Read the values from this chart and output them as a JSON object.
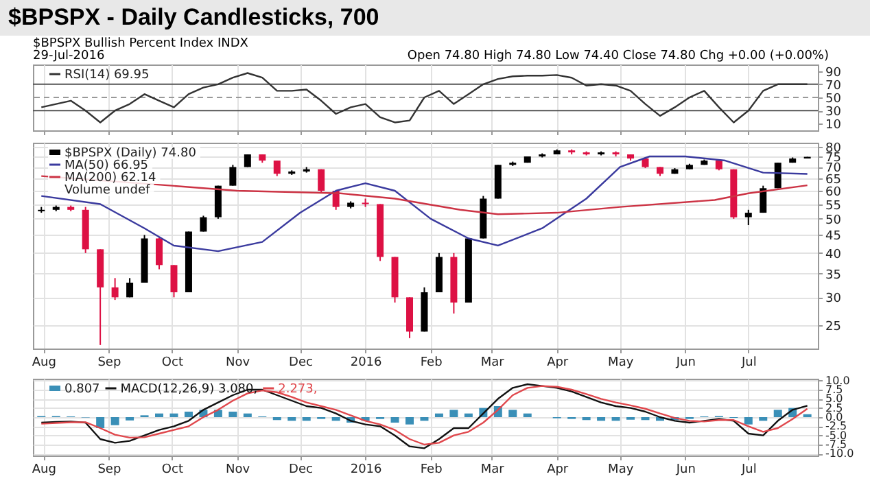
{
  "chart_data": [
    {
      "type": "line",
      "title": "$BPSPX - Daily Candlesticks, 700",
      "subtitle": "$BPSPX Bullish Percent Index INDX",
      "annotations": [
        "29-Jul-2016",
        "Open 74.80 High 74.80 Low 74.40 Close 74.80 Chg +0.00 (+0.00%)"
      ],
      "x": [
        "2015-07-31",
        "2015-08-07",
        "2015-08-14",
        "2015-08-21",
        "2015-08-28",
        "2015-09-04",
        "2015-09-11",
        "2015-09-18",
        "2015-09-25",
        "2015-10-02",
        "2015-10-09",
        "2015-10-16",
        "2015-10-23",
        "2015-10-30",
        "2015-11-06",
        "2015-11-13",
        "2015-11-20",
        "2015-11-27",
        "2015-12-04",
        "2015-12-11",
        "2015-12-18",
        "2015-12-25",
        "2016-01-01",
        "2016-01-08",
        "2016-01-15",
        "2016-01-22",
        "2016-01-29",
        "2016-02-05",
        "2016-02-12",
        "2016-02-19",
        "2016-02-26",
        "2016-03-04",
        "2016-03-11",
        "2016-03-18",
        "2016-03-25",
        "2016-04-01",
        "2016-04-08",
        "2016-04-15",
        "2016-04-22",
        "2016-04-29",
        "2016-05-06",
        "2016-05-13",
        "2016-05-20",
        "2016-05-27",
        "2016-06-03",
        "2016-06-10",
        "2016-06-17",
        "2016-06-24",
        "2016-07-01",
        "2016-07-08",
        "2016-07-15",
        "2016-07-22",
        "2016-07-29"
      ],
      "series": [
        {
          "name": "RSI(14) 69.95",
          "color": "#333333",
          "values": [
            35,
            40,
            45,
            30,
            12,
            30,
            40,
            55,
            45,
            35,
            55,
            65,
            70,
            80,
            87,
            80,
            60,
            60,
            62,
            45,
            25,
            35,
            40,
            20,
            12,
            15,
            50,
            60,
            40,
            55,
            70,
            78,
            82,
            83,
            83,
            84,
            80,
            68,
            70,
            68,
            60,
            40,
            22,
            35,
            50,
            60,
            35,
            12,
            30,
            60,
            70,
            70,
            70
          ]
        }
      ],
      "xlim": [
        "2015-07-27",
        "2016-08-03"
      ],
      "xticks": [
        {
          "value": "2015-08-01",
          "label": null
        },
        {
          "value": "2015-09-01",
          "label": null
        },
        {
          "value": "2015-10-01",
          "label": null
        },
        {
          "value": "2015-11-01",
          "label": null
        },
        {
          "value": "2015-12-01",
          "label": null
        },
        {
          "value": "2016-01-01",
          "label": null
        },
        {
          "value": "2016-02-01",
          "label": null
        },
        {
          "value": "2016-03-01",
          "label": null
        },
        {
          "value": "2016-04-01",
          "label": null
        },
        {
          "value": "2016-05-01",
          "label": null
        },
        {
          "value": "2016-06-01",
          "label": null
        },
        {
          "value": "2016-07-01",
          "label": null
        }
      ],
      "ylim": [
        0,
        100
      ],
      "yticks": [
        10,
        30,
        50,
        70,
        90
      ],
      "ref_lines": [
        {
          "axis": "y",
          "value": 70,
          "color": "#555555"
        },
        {
          "axis": "y",
          "value": 50,
          "color": "#999999",
          "line_style": "dashed"
        },
        {
          "axis": "y",
          "value": 30,
          "color": "#555555"
        }
      ],
      "grid": "x",
      "legend": "top left",
      "tick_labels": "y"
    },
    {
      "type": "candlestick",
      "annotations": [
        "Volume undef"
      ],
      "series": [
        {
          "type": "candlestick",
          "name": "$BPSPX (Daily) 74.80",
          "color": "#000000",
          "x": [
            "2015-07-31",
            "2015-08-07",
            "2015-08-14",
            "2015-08-21",
            "2015-08-28",
            "2015-09-04",
            "2015-09-11",
            "2015-09-18",
            "2015-09-25",
            "2015-10-02",
            "2015-10-09",
            "2015-10-16",
            "2015-10-23",
            "2015-10-30",
            "2015-11-06",
            "2015-11-13",
            "2015-11-20",
            "2015-11-27",
            "2015-12-04",
            "2015-12-11",
            "2015-12-18",
            "2015-12-25",
            "2016-01-01",
            "2016-01-08",
            "2016-01-15",
            "2016-01-22",
            "2016-01-29",
            "2016-02-05",
            "2016-02-12",
            "2016-02-19",
            "2016-02-26",
            "2016-03-04",
            "2016-03-11",
            "2016-03-18",
            "2016-03-25",
            "2016-04-01",
            "2016-04-08",
            "2016-04-15",
            "2016-04-22",
            "2016-04-29",
            "2016-05-06",
            "2016-05-13",
            "2016-05-20",
            "2016-05-27",
            "2016-06-03",
            "2016-06-10",
            "2016-06-17",
            "2016-06-24",
            "2016-07-01",
            "2016-07-08",
            "2016-07-15",
            "2016-07-22",
            "2016-07-29"
          ],
          "ohlc": [
            [
              52.5,
              54,
              52,
              53
            ],
            [
              53,
              54.5,
              52.5,
              54
            ],
            [
              54,
              54.5,
              52.5,
              53
            ],
            [
              53,
              54,
              40,
              41
            ],
            [
              41,
              41,
              22,
              32
            ],
            [
              32,
              34,
              29.5,
              30
            ],
            [
              30,
              34,
              30,
              33
            ],
            [
              33,
              45,
              33,
              44
            ],
            [
              44,
              44.5,
              36,
              37
            ],
            [
              37,
              37,
              30,
              31
            ],
            [
              31,
              46,
              31,
              46
            ],
            [
              46,
              51,
              46,
              50.5
            ],
            [
              50.5,
              62,
              50,
              62
            ],
            [
              62,
              71,
              62,
              70
            ],
            [
              70,
              76,
              70,
              76
            ],
            [
              76,
              76,
              72,
              73
            ],
            [
              73,
              73,
              66,
              67
            ],
            [
              67,
              68.5,
              66.5,
              68
            ],
            [
              68,
              70,
              67.5,
              69
            ],
            [
              69,
              69,
              59,
              60
            ],
            [
              60,
              60,
              53,
              54
            ],
            [
              54,
              56,
              53.5,
              55.5
            ],
            [
              55.5,
              57,
              54,
              55
            ],
            [
              55,
              55,
              38,
              39
            ],
            [
              39,
              39,
              29,
              30
            ],
            [
              30,
              30,
              23,
              24
            ],
            [
              24,
              32,
              24,
              31
            ],
            [
              31,
              40,
              31,
              39
            ],
            [
              39,
              40,
              27,
              29
            ],
            [
              29,
              44,
              29,
              44
            ],
            [
              44,
              58,
              44,
              57
            ],
            [
              57,
              71,
              57,
              71
            ],
            [
              71,
              72.5,
              70.5,
              72
            ],
            [
              72,
              75,
              72,
              75
            ],
            [
              75,
              76.5,
              74.5,
              76
            ],
            [
              76,
              78.5,
              76,
              78
            ],
            [
              78,
              78.5,
              76,
              77
            ],
            [
              77,
              77.5,
              75.5,
              76
            ],
            [
              76,
              77.5,
              75.5,
              77
            ],
            [
              77,
              77.5,
              75,
              76
            ],
            [
              76,
              76,
              73,
              74
            ],
            [
              74,
              74,
              69.5,
              70
            ],
            [
              70,
              70,
              66,
              67
            ],
            [
              67,
              69.5,
              67,
              69
            ],
            [
              69,
              71.5,
              69,
              71
            ],
            [
              71,
              73.5,
              71,
              73
            ],
            [
              73,
              73,
              68.5,
              69
            ],
            [
              69,
              69,
              50,
              50.5
            ],
            [
              50.5,
              53,
              48,
              52
            ],
            [
              52,
              62,
              52,
              61
            ],
            [
              61,
              72,
              61,
              72
            ],
            [
              72,
              74.5,
              72,
              74
            ],
            [
              74,
              74.8,
              74,
              74.8
            ]
          ],
          "colors": [
            "#000000",
            "#000000",
            "#dd1144",
            "#dd1144",
            "#dd1144",
            "#dd1144",
            "#000000",
            "#000000",
            "#dd1144",
            "#dd1144",
            "#000000",
            "#000000",
            "#000000",
            "#000000",
            "#000000",
            "#dd1144",
            "#dd1144",
            "#000000",
            "#000000",
            "#dd1144",
            "#dd1144",
            "#000000",
            "#dd1144",
            "#dd1144",
            "#dd1144",
            "#dd1144",
            "#000000",
            "#000000",
            "#dd1144",
            "#000000",
            "#000000",
            "#000000",
            "#000000",
            "#000000",
            "#000000",
            "#000000",
            "#dd1144",
            "#dd1144",
            "#000000",
            "#dd1144",
            "#dd1144",
            "#dd1144",
            "#dd1144",
            "#000000",
            "#000000",
            "#000000",
            "#dd1144",
            "#dd1144",
            "#000000",
            "#000000",
            "#000000",
            "#000000",
            "#000000"
          ]
        },
        {
          "type": "line",
          "name": "MA(50) 66.95",
          "color": "#3a3a9e",
          "x": [
            "2015-07-31",
            "2015-08-28",
            "2015-09-18",
            "2015-10-02",
            "2015-10-23",
            "2015-11-13",
            "2015-12-01",
            "2015-12-18",
            "2016-01-01",
            "2016-01-15",
            "2016-02-01",
            "2016-02-19",
            "2016-03-04",
            "2016-03-25",
            "2016-04-15",
            "2016-05-01",
            "2016-05-15",
            "2016-06-01",
            "2016-06-20",
            "2016-07-08",
            "2016-07-29"
          ],
          "values": [
            58,
            55,
            47,
            42,
            40.5,
            43,
            52,
            60,
            63,
            60,
            50,
            44,
            42,
            47,
            57,
            70,
            75,
            75,
            73,
            67.5,
            66.95
          ]
        },
        {
          "type": "line",
          "name": "MA(200) 62.14",
          "color": "#cc3344",
          "x": [
            "2015-07-31",
            "2015-10-01",
            "2015-11-01",
            "2015-12-20",
            "2016-01-15",
            "2016-02-15",
            "2016-03-04",
            "2016-04-01",
            "2016-05-01",
            "2016-06-15",
            "2016-07-01",
            "2016-07-29"
          ],
          "values": [
            66,
            62,
            60,
            59,
            57,
            53,
            51.5,
            52,
            54,
            56.5,
            59,
            62.14
          ]
        }
      ],
      "xlim": [
        "2015-07-27",
        "2016-08-03"
      ],
      "xticks": [
        {
          "value": "2015-08-01",
          "label": "Aug"
        },
        {
          "value": "2015-09-01",
          "label": "Sep"
        },
        {
          "value": "2015-10-01",
          "label": "Oct"
        },
        {
          "value": "2015-11-01",
          "label": "Nov"
        },
        {
          "value": "2015-12-01",
          "label": "Dec"
        },
        {
          "value": "2016-01-01",
          "label": "2016"
        },
        {
          "value": "2016-02-01",
          "label": "Feb"
        },
        {
          "value": "2016-03-01",
          "label": "Mar"
        },
        {
          "value": "2016-04-01",
          "label": "Apr"
        },
        {
          "value": "2016-05-01",
          "label": "May"
        },
        {
          "value": "2016-06-01",
          "label": "Jun"
        },
        {
          "value": "2016-07-01",
          "label": "Jul"
        }
      ],
      "ylim": [
        21.5,
        82
      ],
      "yticks": [
        25,
        30,
        35,
        40,
        45,
        50,
        55,
        60,
        65,
        70,
        75,
        80
      ],
      "log": "y",
      "grid": true,
      "legend": "top left"
    },
    {
      "type": "line",
      "x": [
        "2015-07-31",
        "2015-08-07",
        "2015-08-14",
        "2015-08-21",
        "2015-08-28",
        "2015-09-04",
        "2015-09-11",
        "2015-09-18",
        "2015-09-25",
        "2015-10-02",
        "2015-10-09",
        "2015-10-16",
        "2015-10-23",
        "2015-10-30",
        "2015-11-06",
        "2015-11-13",
        "2015-11-20",
        "2015-11-27",
        "2015-12-04",
        "2015-12-11",
        "2015-12-18",
        "2015-12-25",
        "2016-01-01",
        "2016-01-08",
        "2016-01-15",
        "2016-01-22",
        "2016-01-29",
        "2016-02-05",
        "2016-02-12",
        "2016-02-19",
        "2016-02-26",
        "2016-03-04",
        "2016-03-11",
        "2016-03-18",
        "2016-03-25",
        "2016-04-01",
        "2016-04-08",
        "2016-04-15",
        "2016-04-22",
        "2016-04-29",
        "2016-05-06",
        "2016-05-13",
        "2016-05-20",
        "2016-05-27",
        "2016-06-03",
        "2016-06-10",
        "2016-06-17",
        "2016-06-24",
        "2016-07-01",
        "2016-07-08",
        "2016-07-15",
        "2016-07-22",
        "2016-07-29"
      ],
      "series": [
        {
          "type": "bar",
          "name": "0.807",
          "color": "#3a8fb7",
          "values": [
            0.3,
            0.3,
            0.2,
            -0.1,
            -3,
            -2.2,
            -0.9,
            0.5,
            1,
            1,
            1.5,
            2,
            2,
            1.5,
            1,
            0.2,
            -0.8,
            -1,
            -1,
            -0.5,
            -1,
            -1.5,
            -1,
            -0.5,
            -1.5,
            -2,
            -1,
            1,
            2,
            1,
            2.5,
            3,
            2,
            1,
            0,
            -0.3,
            -0.5,
            -0.8,
            -1,
            -1,
            -0.7,
            -0.8,
            -1,
            -0.8,
            -0.5,
            0.2,
            0.3,
            -0.2,
            -2,
            -1,
            2,
            2.5,
            0.8
          ]
        },
        {
          "type": "line",
          "name": "MACD(12,26,9) 3.080,",
          "color": "#111111",
          "values": [
            -1.5,
            -1.3,
            -1.2,
            -1.5,
            -6,
            -7,
            -6.5,
            -5,
            -3.5,
            -2.5,
            -1,
            2,
            4,
            6,
            7.5,
            7.5,
            6,
            4.5,
            3,
            2.5,
            1,
            -1,
            -2,
            -2.5,
            -5,
            -8,
            -8.5,
            -6,
            -3,
            -3,
            1,
            5,
            8,
            9,
            8.5,
            8,
            7,
            5.5,
            4,
            3,
            2.5,
            1.5,
            0,
            -1,
            -1.5,
            -1,
            -0.5,
            -1,
            -4.5,
            -5,
            -1,
            2,
            3.1
          ]
        },
        {
          "type": "line",
          "name": "2.273,",
          "color": "#e0474c",
          "values": [
            -1.8,
            -1.6,
            -1.4,
            -1.4,
            -3,
            -4.8,
            -5.6,
            -5.5,
            -4.5,
            -3.5,
            -2.5,
            0,
            2,
            4.5,
            6.5,
            7.3,
            6.8,
            5.5,
            4,
            3,
            2,
            0.5,
            -1,
            -2,
            -3.5,
            -6,
            -7.5,
            -7,
            -5,
            -4,
            -1.5,
            2,
            6,
            8,
            8.5,
            8.3,
            7.5,
            6.3,
            5,
            4,
            3.2,
            2.3,
            1,
            -0.2,
            -1,
            -1.2,
            -0.8,
            -0.8,
            -2.5,
            -4,
            -3,
            -0.5,
            2.3
          ]
        }
      ],
      "xlim": [
        "2015-07-27",
        "2016-08-03"
      ],
      "xticks": [
        {
          "value": "2015-08-01",
          "label": "Aug"
        },
        {
          "value": "2015-09-01",
          "label": "Sep"
        },
        {
          "value": "2015-10-01",
          "label": "Oct"
        },
        {
          "value": "2015-11-01",
          "label": "Nov"
        },
        {
          "value": "2015-12-01",
          "label": "Dec"
        },
        {
          "value": "2016-01-01",
          "label": "2016"
        },
        {
          "value": "2016-02-01",
          "label": "Feb"
        },
        {
          "value": "2016-03-01",
          "label": "Mar"
        },
        {
          "value": "2016-04-01",
          "label": "Apr"
        },
        {
          "value": "2016-05-01",
          "label": "May"
        },
        {
          "value": "2016-06-01",
          "label": "Jun"
        },
        {
          "value": "2016-07-01",
          "label": "Jul"
        }
      ],
      "ylim": [
        -10.5,
        10.5
      ],
      "yticks": [
        {
          "value": 10,
          "label": "10.0"
        },
        7.5,
        {
          "value": 5,
          "label": "5.0"
        },
        2.5,
        {
          "value": 0,
          "label": "0.0"
        },
        -2.5,
        {
          "value": -5,
          "label": "-5.0"
        },
        -7.5,
        {
          "value": -10,
          "label": "-10.0"
        }
      ],
      "grid": true,
      "legend": "top left"
    }
  ]
}
